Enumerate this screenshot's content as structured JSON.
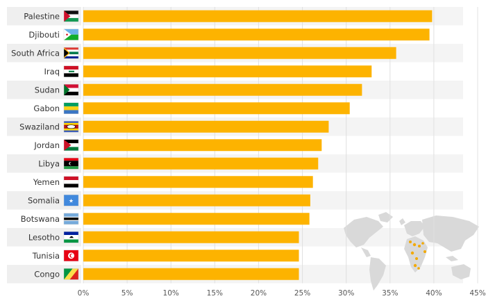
{
  "chart_data": {
    "type": "bar",
    "orientation": "horizontal",
    "title": "",
    "xlabel": "",
    "ylabel": "",
    "xlim": [
      0,
      45
    ],
    "x_ticks": [
      "0%",
      "5%",
      "10%",
      "15%",
      "20%",
      "25%",
      "30%",
      "35%",
      "40%",
      "45%"
    ],
    "grid": true,
    "categories": [
      "Palestine",
      "Djibouti",
      "South Africa",
      "Iraq",
      "Sudan",
      "Gabon",
      "Swaziland",
      "Jordan",
      "Libya",
      "Yemen",
      "Somalia",
      "Botswana",
      "Lesotho",
      "Tunisia",
      "Congo"
    ],
    "flag_icons": [
      "palestine-flag-icon",
      "djibouti-flag-icon",
      "south-africa-flag-icon",
      "iraq-flag-icon",
      "sudan-flag-icon",
      "gabon-flag-icon",
      "swaziland-flag-icon",
      "jordan-flag-icon",
      "libya-flag-icon",
      "yemen-flag-icon",
      "somalia-flag-icon",
      "botswana-flag-icon",
      "lesotho-flag-icon",
      "tunisia-flag-icon",
      "congo-flag-icon"
    ],
    "values": [
      39.8,
      39.5,
      35.7,
      32.9,
      31.8,
      30.4,
      28.0,
      27.2,
      26.8,
      26.2,
      25.9,
      25.8,
      24.6,
      24.6,
      24.6
    ],
    "bar_color": "#FDB300",
    "row_band_color": "#EFEFEF",
    "map_icon": "world-map-icon",
    "map_highlight_color": "#F2A900"
  }
}
